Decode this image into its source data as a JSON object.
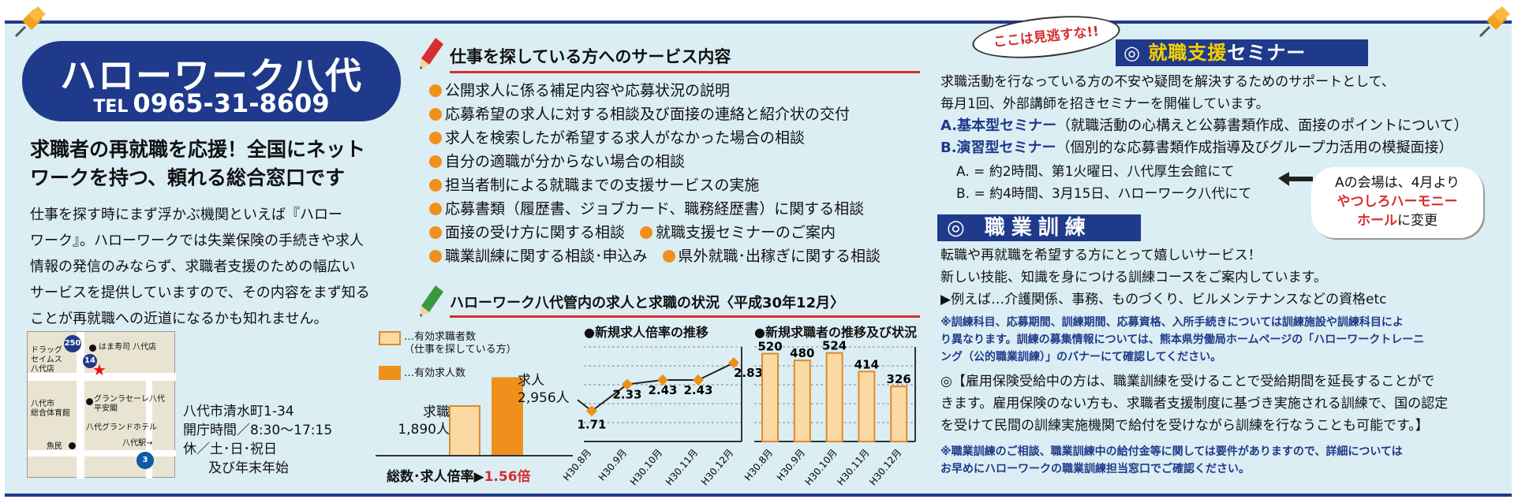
{
  "left": {
    "title": "ハローワーク八代",
    "tel_prefix": "TEL",
    "tel": "0965-31-8609",
    "lead_lines": [
      "求職者の再就職を応援！全国にネット",
      "ワークを持つ、頼れる総合窓口です"
    ],
    "body_lines": [
      "仕事を探す時にまず浮かぶ機関といえば『ハロー",
      "ワーク』。ハローワークでは失業保険の手続きや求人",
      "情報の発信のみならず、求職者支援のための幅広い",
      "サービスを提供していますので、その内容をまず知る",
      "ことが再就職への近道になるかも知れません。"
    ],
    "map": {
      "route_250": "250",
      "route_14": "14",
      "route_3": "3",
      "labels": {
        "drugstore": "ドラッグ\nセイムス\n八代店",
        "hamazushi": "はま寿司 八代店",
        "gym": "八代市\n総合体育館",
        "grandhotel": "八代グランドホテル",
        "granlasele": "グランラセーレ八代\n平安閣",
        "station": "八代駅→",
        "uomin": "魚民"
      }
    },
    "address": "八代市清水町1-34",
    "hours": "開庁時間／8:30〜17:15",
    "holidays_1": "休／土･日･祝日",
    "holidays_2": "及び年末年始"
  },
  "services": {
    "heading": "仕事を探している方へのサービス内容",
    "items": [
      "公開求人に係る補足内容や応募状況の説明",
      "応募希望の求人に対する相談及び面接の連絡と紹介状の交付",
      "求人を検索したが希望する求人がなかった場合の相談",
      "自分の適職が分からない場合の相談",
      "担当者制による就職までの支援サービスの実施",
      "応募書類（履歴書、ジョブカード、職務経歴書）に関する相談"
    ],
    "row7_a": "面接の受け方に関する相談",
    "row7_b": "就職支援セミナーのご案内",
    "row8_a": "職業訓練に関する相談･申込み",
    "row8_b": "県外就職･出稼ぎに関する相談"
  },
  "status": {
    "heading": "ハローワーク八代管内の求人と求職の状況〈平成30年12月〉",
    "legend_seekers": "…有効求職者数\n（仕事を探している方）",
    "legend_jobs": "…有効求人数",
    "seekers_label": "求職\n1,890人",
    "jobs_label": "求人\n2,956人",
    "ratio_label": "総数･求人倍率▶",
    "ratio_value": "1.56倍",
    "colors": {
      "seekers": "#fbd9a4",
      "jobs": "#f0901c",
      "seekers_border": "#e08a2a"
    }
  },
  "chart_data": [
    {
      "type": "bar",
      "categories": [
        "求職",
        "求人"
      ],
      "values": [
        1890,
        2956
      ]
    },
    {
      "type": "line",
      "title": "●新規求人倍率の推移",
      "categories": [
        "H30.8月",
        "H30.9月",
        "H30.10月",
        "H30.11月",
        "H30.12月"
      ],
      "values": [
        1.71,
        2.33,
        2.43,
        2.43,
        2.83
      ],
      "labels": [
        "1.71",
        "2.33",
        "2.43",
        "2.43",
        "2.83"
      ],
      "ylim": [
        1.0,
        3.2
      ]
    },
    {
      "type": "bar",
      "title": "●新規求職者の推移及び状況",
      "categories": [
        "H30.8月",
        "H30.9月",
        "H30.10月",
        "H30.11月",
        "H30.12月"
      ],
      "values": [
        520,
        480,
        524,
        414,
        326
      ],
      "labels": [
        "520",
        "480",
        "524",
        "414",
        "326"
      ],
      "ylim": [
        0,
        560
      ]
    }
  ],
  "right": {
    "callout_top": "ここは見逃すな!!",
    "seminar_mark": "◎",
    "seminar_a": "就職支援",
    "seminar_b": "セミナー",
    "intro_1": "求職活動を行なっている方の不安や疑問を解決するためのサポートとして、",
    "intro_2": "毎月1回、外部講師を招きセミナーを開催しています。",
    "a_name": "A.基本型セミナー",
    "a_desc": "（就職活動の心構えと公募書類作成、面接のポイントについて）",
    "b_name": "B.演習型セミナー",
    "b_desc": "（個別的な応募書類作成指導及びグループ力活用の模擬面接）",
    "a_detail": "A. = 約2時間、第1火曜日、八代厚生会館にて",
    "b_detail": "B. = 約4時間、3月15日、ハローワーク八代にて",
    "callout_venue_1": "Aの会場は、4月より",
    "callout_venue_2": "やつしろハーモニー",
    "callout_venue_3": "ホール",
    "callout_venue_4": "に変更",
    "training_head": "◎ 職業訓練",
    "training_1": "転職や再就職を希望する方にとって嬉しいサービス！",
    "training_2": "新しい技能、知識を身につける訓練コースをご案内しています。",
    "training_3": "▶例えば…介護関係、事務、ものづくり、ビルメンテナンスなどの資格etc",
    "note1_1": "※訓練科目、応募期間、訓練期間、応募資格、入所手続きについては訓練施設や訓練科目によ",
    "note1_2": "り異なります。訓練の募集情報については、熊本県労働局ホームページの「ハローワークトレーニ",
    "note1_3": "ング（公的職業訓練）」のバナーにて確認してください。",
    "insurance_1": "◎【雇用保険受給中の方は、職業訓練を受けることで受給期間を延長することがで",
    "insurance_2": "きます。雇用保険のない方も、求職者支援制度に基づき実施される訓練で、国の認定",
    "insurance_3": "を受けて民間の訓練実施機関で給付を受けながら訓練を行なうことも可能です。】",
    "note2_1": "※職業訓練のご相談、職業訓練中の給付金等に関しては要件がありますので、詳細については",
    "note2_2": "お早めにハローワークの職業訓練担当窓口でご確認ください。"
  }
}
